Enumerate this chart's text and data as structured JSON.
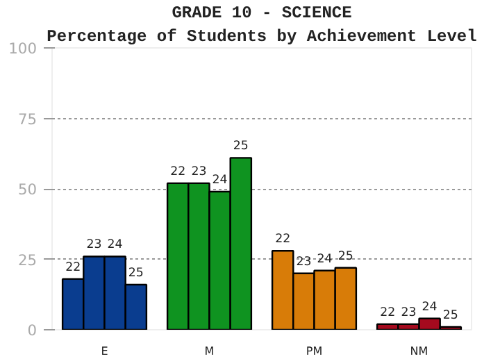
{
  "chart_data": {
    "type": "bar",
    "title": "GRADE 10 - SCIENCE",
    "subtitle": "Percentage of Students by Achievement Level",
    "categories": [
      "E",
      "M",
      "PM",
      "NM"
    ],
    "series": [
      {
        "name": "22",
        "colors": [
          "#0a3d8f",
          "#0f9320",
          "#d87c08",
          "#a50a1e"
        ],
        "values": [
          18,
          52,
          28,
          2
        ]
      },
      {
        "name": "23",
        "colors": [
          "#0a3d8f",
          "#0f9320",
          "#d87c08",
          "#a50a1e"
        ],
        "values": [
          26,
          52,
          20,
          2
        ]
      },
      {
        "name": "24",
        "colors": [
          "#0a3d8f",
          "#0f9320",
          "#d87c08",
          "#a50a1e"
        ],
        "values": [
          26,
          49,
          21,
          4
        ]
      },
      {
        "name": "25",
        "colors": [
          "#0a3d8f",
          "#0f9320",
          "#d87c08",
          "#a50a1e"
        ],
        "values": [
          16,
          61,
          22,
          1
        ]
      }
    ],
    "ylim": [
      0,
      100
    ],
    "yticks": [
      0,
      25,
      50,
      75,
      100
    ],
    "grid": "y"
  }
}
